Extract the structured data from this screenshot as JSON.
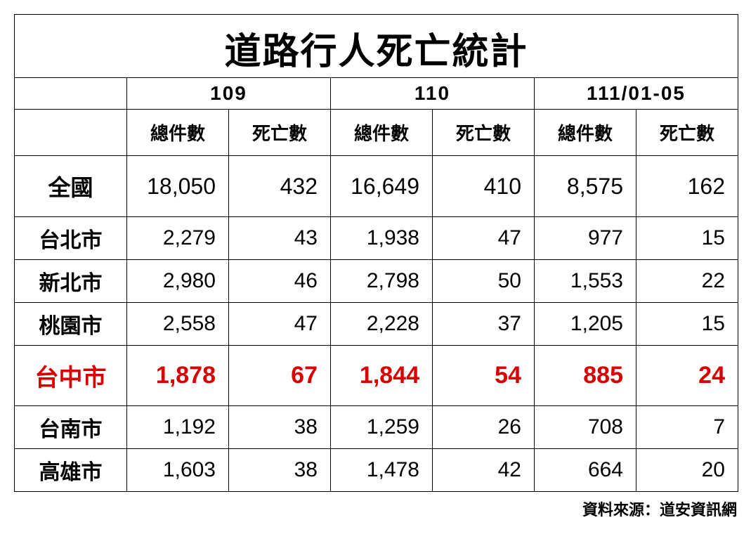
{
  "title": "道路行人死亡統計",
  "title_fontsize": 52,
  "year_headers": [
    "109",
    "110",
    "111/01-05"
  ],
  "year_fontsize": 28,
  "sub_headers": [
    "總件數",
    "死亡數"
  ],
  "subhead_fontsize": 26,
  "city_col_width": 160,
  "data_col_width": 145,
  "city_fontsize": 30,
  "data_fontsize": 30,
  "national_fontsize": 32,
  "highlight_fontsize": 34,
  "rows": [
    {
      "label": "全國",
      "values": [
        "18,050",
        "432",
        "16,649",
        "410",
        "8,575",
        "162"
      ],
      "national": true
    },
    {
      "label": "台北市",
      "values": [
        "2,279",
        "43",
        "1,938",
        "47",
        "977",
        "15"
      ]
    },
    {
      "label": "新北市",
      "values": [
        "2,980",
        "46",
        "2,798",
        "50",
        "1,553",
        "22"
      ]
    },
    {
      "label": "桃園市",
      "values": [
        "2,558",
        "47",
        "2,228",
        "37",
        "1,205",
        "15"
      ]
    },
    {
      "label": "台中市",
      "values": [
        "1,878",
        "67",
        "1,844",
        "54",
        "885",
        "24"
      ],
      "highlight": true
    },
    {
      "label": "台南市",
      "values": [
        "1,192",
        "38",
        "1,259",
        "26",
        "708",
        "7"
      ]
    },
    {
      "label": "高雄市",
      "values": [
        "1,603",
        "38",
        "1,478",
        "42",
        "664",
        "20"
      ]
    }
  ],
  "highlight_color": "#d90000",
  "text_color": "#000000",
  "source_label": "資料來源：道安資訊網",
  "source_fontsize": 22
}
